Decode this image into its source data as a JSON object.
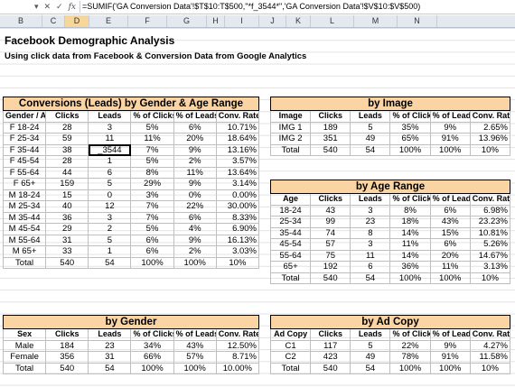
{
  "formula_bar": {
    "formula": "=SUMIF('GA Conversion Data'!$T$10:T$500,\"*f_3544*\",'GA Conversion Data'!$V$10:$V$500)"
  },
  "columns": [
    "B",
    "C",
    "D",
    "E",
    "F",
    "G",
    "H",
    "I",
    "J",
    "K",
    "L",
    "M",
    "N"
  ],
  "title": "Facebook Demographic Analysis",
  "subtitle": "Using click data from Facebook & Conversion Data from Google Analytics",
  "gender_age": {
    "caption": "Conversions (Leads) by Gender & Age Range",
    "headers": [
      "Gender / Age",
      "Clicks",
      "Leads",
      "% of Clicks",
      "% of Leads",
      "Conv. Rate"
    ],
    "rows": [
      [
        "F 18-24",
        "28",
        "3",
        "5%",
        "6%",
        "10.71%"
      ],
      [
        "F 25-34",
        "59",
        "11",
        "11%",
        "20%",
        "18.64%"
      ],
      [
        "F 35-44",
        "38",
        "_3544",
        "7%",
        "9%",
        "13.16%"
      ],
      [
        "F 45-54",
        "28",
        "1",
        "5%",
        "2%",
        "3.57%"
      ],
      [
        "F 55-64",
        "44",
        "6",
        "8%",
        "11%",
        "13.64%"
      ],
      [
        "F 65+",
        "159",
        "5",
        "29%",
        "9%",
        "3.14%"
      ],
      [
        "M 18-24",
        "15",
        "0",
        "3%",
        "0%",
        "0.00%"
      ],
      [
        "M 25-34",
        "40",
        "12",
        "7%",
        "22%",
        "30.00%"
      ],
      [
        "M 35-44",
        "36",
        "3",
        "7%",
        "6%",
        "8.33%"
      ],
      [
        "M 45-54",
        "29",
        "2",
        "5%",
        "4%",
        "6.90%"
      ],
      [
        "M 55-64",
        "31",
        "5",
        "6%",
        "9%",
        "16.13%"
      ],
      [
        "M 65+",
        "33",
        "1",
        "6%",
        "2%",
        "3.03%"
      ]
    ],
    "total": [
      "Total",
      "540",
      "54",
      "100%",
      "100%",
      "10%"
    ]
  },
  "by_image": {
    "caption": "by Image",
    "headers": [
      "Image",
      "Clicks",
      "Leads",
      "% of Clicks",
      "% of Leads",
      "Conv. Rate"
    ],
    "rows": [
      [
        "IMG 1",
        "189",
        "5",
        "35%",
        "9%",
        "2.65%"
      ],
      [
        "IMG 2",
        "351",
        "49",
        "65%",
        "91%",
        "13.96%"
      ]
    ],
    "total": [
      "Total",
      "540",
      "54",
      "100%",
      "100%",
      "10%"
    ]
  },
  "by_age": {
    "caption": "by Age Range",
    "headers": [
      "Age",
      "Clicks",
      "Leads",
      "% of Clicks",
      "% of Leads",
      "Conv. Rate"
    ],
    "rows": [
      [
        "18-24",
        "43",
        "3",
        "8%",
        "6%",
        "6.98%"
      ],
      [
        "25-34",
        "99",
        "23",
        "18%",
        "43%",
        "23.23%"
      ],
      [
        "35-44",
        "74",
        "8",
        "14%",
        "15%",
        "10.81%"
      ],
      [
        "45-54",
        "57",
        "3",
        "11%",
        "6%",
        "5.26%"
      ],
      [
        "55-64",
        "75",
        "11",
        "14%",
        "20%",
        "14.67%"
      ],
      [
        "65+",
        "192",
        "6",
        "36%",
        "11%",
        "3.13%"
      ]
    ],
    "total": [
      "Total",
      "540",
      "54",
      "100%",
      "100%",
      "10%"
    ]
  },
  "by_gender": {
    "caption": "by Gender",
    "headers": [
      "Sex",
      "Clicks",
      "Leads",
      "% of Clicks",
      "% of Leads",
      "Conv. Rate"
    ],
    "rows": [
      [
        "Male",
        "184",
        "23",
        "34%",
        "43%",
        "12.50%"
      ],
      [
        "Female",
        "356",
        "31",
        "66%",
        "57%",
        "8.71%"
      ]
    ],
    "total": [
      "Total",
      "540",
      "54",
      "100%",
      "100%",
      "10.00%"
    ]
  },
  "by_ad_copy": {
    "caption": "by Ad Copy",
    "headers": [
      "Ad Copy",
      "Clicks",
      "Leads",
      "% of Clicks",
      "% of Leads",
      "Conv. Rate"
    ],
    "rows": [
      [
        "C1",
        "117",
        "5",
        "22%",
        "9%",
        "4.27%"
      ],
      [
        "C2",
        "423",
        "49",
        "78%",
        "91%",
        "11.58%"
      ]
    ],
    "total": [
      "Total",
      "540",
      "54",
      "100%",
      "100%",
      "10%"
    ]
  }
}
